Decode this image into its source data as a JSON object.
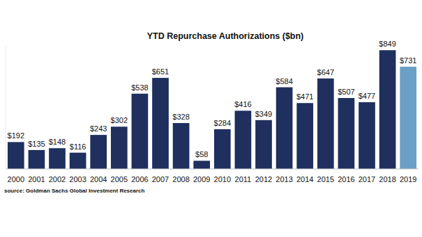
{
  "chart_data": {
    "type": "bar",
    "title": "YTD Repurchase Authorizations ($bn)",
    "categories": [
      "2000",
      "2001",
      "2002",
      "2003",
      "2004",
      "2005",
      "2006",
      "2007",
      "2008",
      "2009",
      "2010",
      "2011",
      "2012",
      "2013",
      "2014",
      "2015",
      "2016",
      "2017",
      "2018",
      "2019"
    ],
    "values": [
      192,
      135,
      148,
      116,
      243,
      302,
      538,
      651,
      328,
      58,
      284,
      416,
      349,
      584,
      471,
      647,
      507,
      477,
      849,
      731
    ],
    "value_labels": [
      "$192",
      "$135",
      "$148",
      "$116",
      "$243",
      "$302",
      "$538",
      "$651",
      "$328",
      "$58",
      "$284",
      "$416",
      "$349",
      "$584",
      "$471",
      "$647",
      "$507",
      "$477",
      "$849",
      "$731"
    ],
    "colors": [
      "#1f2f5e",
      "#1f2f5e",
      "#1f2f5e",
      "#1f2f5e",
      "#1f2f5e",
      "#1f2f5e",
      "#1f2f5e",
      "#1f2f5e",
      "#1f2f5e",
      "#1f2f5e",
      "#1f2f5e",
      "#1f2f5e",
      "#1f2f5e",
      "#1f2f5e",
      "#1f2f5e",
      "#1f2f5e",
      "#1f2f5e",
      "#1f2f5e",
      "#1f2f5e",
      "#6b9fc6"
    ],
    "ylim": [
      0,
      880
    ],
    "data_labels": true,
    "tick_labels": "x",
    "annotations": [
      "source: Goldman Sachs Global Investment Research"
    ]
  }
}
